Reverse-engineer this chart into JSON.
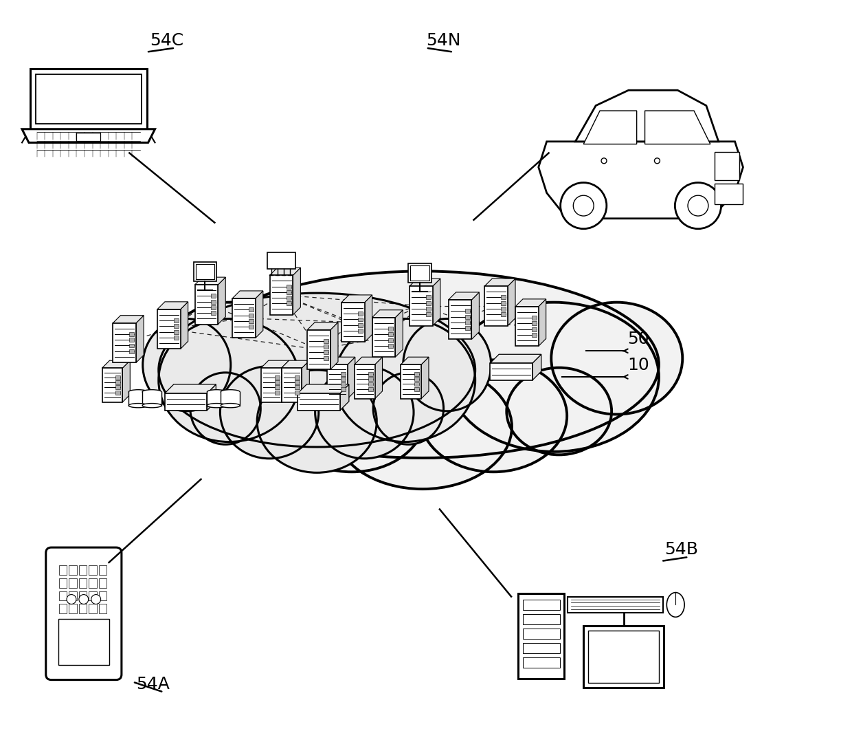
{
  "bg_color": "#ffffff",
  "lc": "#000000",
  "label_54C": "54C",
  "label_54N": "54N",
  "label_54A": "54A",
  "label_54B": "54B",
  "label_50": "50",
  "label_10": "10",
  "fig_width": 12.4,
  "fig_height": 10.95,
  "label_fontsize": 18
}
